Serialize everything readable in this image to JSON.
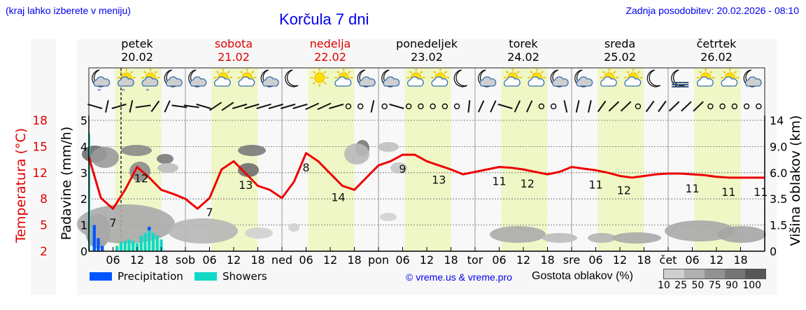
{
  "header": {
    "left_note": "(kraj lahko izberete v meniju)",
    "title": "Korčula 7 dni",
    "last_update": "Zadnja posodobitev: 20.02.2026 - 08:10"
  },
  "days": [
    {
      "name": "petek",
      "date": "20.02",
      "weekend": false
    },
    {
      "name": "sobota",
      "date": "21.02",
      "weekend": true
    },
    {
      "name": "nedelja",
      "date": "22.02",
      "weekend": true
    },
    {
      "name": "ponedeljek",
      "date": "23.02",
      "weekend": false
    },
    {
      "name": "torek",
      "date": "24.02",
      "weekend": false
    },
    {
      "name": "sreda",
      "date": "25.02",
      "weekend": false
    },
    {
      "name": "četrtek",
      "date": "26.02",
      "weekend": false
    }
  ],
  "axes": {
    "temp_label": "Temperatura (°C)",
    "temp_ticks": [
      "18",
      "15",
      "12",
      "8",
      "5",
      "2"
    ],
    "precip_label": "Padavine (mm/h)",
    "precip_ticks": [
      "5",
      "4",
      "3",
      "2",
      "1",
      "0"
    ],
    "cloud_label": "Višina oblakov (km)",
    "cloud_ticks": [
      "14",
      "9.0",
      "6.0",
      "3.5",
      "1.5",
      "0"
    ],
    "x_ticks": [
      "06",
      "12",
      "18",
      "sob",
      "06",
      "12",
      "18",
      "ned",
      "06",
      "12",
      "18",
      "pon",
      "06",
      "12",
      "18",
      "tor",
      "06",
      "12",
      "18",
      "sre",
      "06",
      "12",
      "18",
      "čet",
      "06",
      "12",
      "18"
    ]
  },
  "weather_icons": [
    "moon-cloud-rain",
    "sun-cloud-rain",
    "sun-cloud-rain",
    "moon-cloud",
    "moon-cloud",
    "sun-cloud",
    "sun-cloud",
    "moon-cloud",
    "moon",
    "sun",
    "sun-cloud",
    "moon-cloud",
    "moon-cloud",
    "sun-cloud",
    "sun-cloud",
    "moon",
    "moon-cloud",
    "sun-cloud",
    "sun-cloud",
    "moon-cloud",
    "moon-cloud",
    "sun-cloud",
    "sun-cloud",
    "moon",
    "moon-fog",
    "sun-cloud",
    "sun-cloud",
    "moon-cloud"
  ],
  "legend": {
    "precipitation": "Precipitation",
    "showers": "Showers",
    "precip_color": "#0055ff",
    "showers_color": "#11d9c5",
    "copyright": "© vreme.us & vreme.pro",
    "cloud_density_label": "Gostota oblakov (%)",
    "cloud_density_ticks": "10 25 50 75 90 100"
  },
  "colors": {
    "temperature_line": "#ee0000",
    "daytime_band": "#eff7c6",
    "title_blue": "#0000ee"
  },
  "chart_data": {
    "type": "line",
    "title": "Korčula 7 dni",
    "xlabel": "",
    "ylabel": "Temperatura (°C)",
    "ylim": [
      2,
      18
    ],
    "series": [
      {
        "name": "Temperatura",
        "x_hours": [
          0,
          3,
          6,
          9,
          12,
          15,
          18,
          21,
          24,
          27,
          30,
          33,
          36,
          39,
          42,
          45,
          48,
          51,
          54,
          57,
          60,
          63,
          66,
          69,
          72,
          75,
          78,
          81,
          84,
          87,
          90,
          93,
          96,
          99,
          102,
          105,
          108,
          111,
          114,
          117,
          120,
          123,
          126,
          129,
          132,
          135,
          138,
          141,
          144,
          147,
          150,
          153,
          156,
          159,
          162,
          165,
          168
        ],
        "values": [
          13.5,
          8.5,
          7.2,
          9.5,
          12.3,
          11,
          9.5,
          9,
          8.4,
          7.2,
          8.5,
          12,
          13,
          11.5,
          10,
          9.5,
          8.5,
          10.5,
          14,
          13,
          11.5,
          10,
          9.5,
          11,
          12.5,
          13,
          13.8,
          13.8,
          13,
          12.5,
          12,
          11.4,
          11.7,
          12,
          12.3,
          12.2,
          12,
          11.7,
          11.4,
          11.7,
          12.3,
          12.1,
          11.9,
          11.6,
          11.2,
          11.0,
          11.2,
          11.4,
          11.5,
          11.5,
          11.4,
          11.3,
          11.1,
          11.0,
          11.0,
          11.0,
          11.0
        ]
      }
    ],
    "temp_labels": [
      {
        "hour": 6,
        "value": "7"
      },
      {
        "hour": 13,
        "value": "12"
      },
      {
        "hour": 30,
        "value": "7"
      },
      {
        "hour": 39,
        "value": "13"
      },
      {
        "hour": 54,
        "value": "8"
      },
      {
        "hour": 62,
        "value": "14"
      },
      {
        "hour": 78,
        "value": "9"
      },
      {
        "hour": 87,
        "value": "13"
      },
      {
        "hour": 102,
        "value": "11"
      },
      {
        "hour": 109,
        "value": "12"
      },
      {
        "hour": 126,
        "value": "11"
      },
      {
        "hour": 133,
        "value": "12"
      },
      {
        "hour": 150,
        "value": "11"
      },
      {
        "hour": 159,
        "value": "11"
      },
      {
        "hour": 167,
        "value": "11"
      }
    ],
    "precipitation_mm_h": [
      {
        "hour": 0,
        "showers": 4.5
      },
      {
        "hour": 1,
        "precip": 1.0
      },
      {
        "hour": 2,
        "precip": 0.5
      },
      {
        "hour": 3,
        "precip": 0.2
      }
    ],
    "showers_mm_h": [
      {
        "hour": 7,
        "value": 0.2
      },
      {
        "hour": 8,
        "value": 0.35
      },
      {
        "hour": 9,
        "value": 0.4
      },
      {
        "hour": 10,
        "value": 0.45
      },
      {
        "hour": 11,
        "value": 0.4
      },
      {
        "hour": 12,
        "value": 0.3
      },
      {
        "hour": 13,
        "value": 0.6
      },
      {
        "hour": 14,
        "value": 0.7
      },
      {
        "hour": 15,
        "value": 0.8
      },
      {
        "hour": 16,
        "value": 0.7
      },
      {
        "hour": 17,
        "value": 0.6
      },
      {
        "hour": 18,
        "value": 0.45
      }
    ],
    "precip_axis": {
      "label": "Padavine (mm/h)",
      "ylim": [
        0,
        5
      ]
    },
    "cloud_axis": {
      "label": "Višina oblakov (km)",
      "ticks": [
        0,
        1.5,
        3.5,
        6.0,
        9.0,
        14
      ]
    },
    "cloud_density_legend": [
      10,
      25,
      50,
      75,
      90,
      100
    ],
    "now_marker_hour": 8,
    "grid": true
  }
}
